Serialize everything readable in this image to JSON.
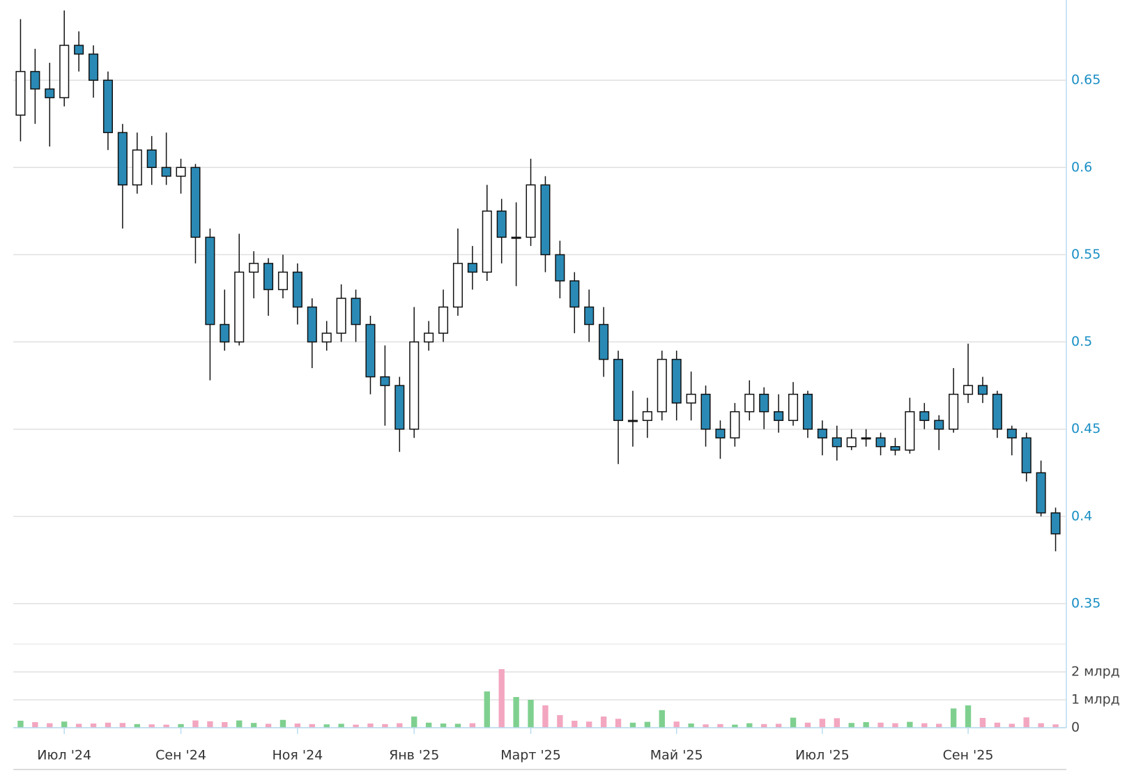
{
  "chart_data": [
    {
      "type": "candlestick",
      "categories": [
        null,
        null,
        null,
        "Июл '24",
        null,
        null,
        null,
        null,
        null,
        null,
        null,
        "Сен '24",
        null,
        null,
        null,
        null,
        null,
        null,
        null,
        "Ноя '24",
        null,
        null,
        null,
        null,
        null,
        null,
        null,
        "Янв '25",
        null,
        null,
        null,
        null,
        null,
        null,
        null,
        "Март '25",
        null,
        null,
        null,
        null,
        null,
        null,
        null,
        null,
        null,
        "Май '25",
        null,
        null,
        null,
        null,
        null,
        null,
        null,
        null,
        null,
        "Июл '25",
        null,
        null,
        null,
        null,
        null,
        null,
        null,
        null,
        null,
        "Сен '25",
        null,
        null,
        null,
        null,
        null,
        null
      ],
      "open": [
        0.63,
        0.655,
        0.645,
        0.64,
        0.67,
        0.665,
        0.65,
        0.62,
        0.59,
        0.61,
        0.6,
        0.595,
        0.6,
        0.56,
        0.51,
        0.5,
        0.54,
        0.545,
        0.53,
        0.54,
        0.52,
        0.5,
        0.505,
        0.525,
        0.51,
        0.48,
        0.475,
        0.45,
        0.5,
        0.505,
        0.52,
        0.545,
        0.54,
        0.575,
        0.56,
        0.56,
        0.59,
        0.55,
        0.535,
        0.52,
        0.51,
        0.49,
        0.455,
        0.455,
        0.46,
        0.49,
        0.465,
        0.47,
        0.45,
        0.445,
        0.46,
        0.47,
        0.46,
        0.455,
        0.47,
        0.45,
        0.445,
        0.44,
        0.445,
        0.445,
        0.44,
        0.438,
        0.46,
        0.455,
        0.45,
        0.47,
        0.475,
        0.47,
        0.45,
        0.445,
        0.425,
        0.402
      ],
      "high": [
        0.685,
        0.668,
        0.66,
        0.69,
        0.678,
        0.67,
        0.655,
        0.625,
        0.62,
        0.618,
        0.62,
        0.605,
        0.602,
        0.565,
        0.53,
        0.562,
        0.552,
        0.548,
        0.55,
        0.545,
        0.525,
        0.512,
        0.533,
        0.53,
        0.515,
        0.498,
        0.48,
        0.52,
        0.512,
        0.53,
        0.565,
        0.555,
        0.59,
        0.582,
        0.58,
        0.605,
        0.595,
        0.558,
        0.54,
        0.53,
        0.52,
        0.495,
        0.472,
        0.468,
        0.495,
        0.495,
        0.483,
        0.475,
        0.455,
        0.465,
        0.478,
        0.474,
        0.47,
        0.477,
        0.472,
        0.455,
        0.452,
        0.45,
        0.45,
        0.448,
        0.445,
        0.468,
        0.465,
        0.458,
        0.485,
        0.499,
        0.48,
        0.472,
        0.452,
        0.448,
        0.432,
        0.405
      ],
      "low": [
        0.615,
        0.625,
        0.612,
        0.635,
        0.655,
        0.64,
        0.61,
        0.565,
        0.585,
        0.59,
        0.59,
        0.585,
        0.545,
        0.478,
        0.495,
        0.498,
        0.525,
        0.515,
        0.525,
        0.51,
        0.485,
        0.495,
        0.5,
        0.5,
        0.47,
        0.452,
        0.437,
        0.445,
        0.495,
        0.5,
        0.515,
        0.53,
        0.535,
        0.545,
        0.532,
        0.555,
        0.54,
        0.525,
        0.505,
        0.5,
        0.48,
        0.43,
        0.44,
        0.445,
        0.455,
        0.455,
        0.455,
        0.44,
        0.433,
        0.44,
        0.455,
        0.45,
        0.448,
        0.452,
        0.445,
        0.435,
        0.432,
        0.438,
        0.44,
        0.435,
        0.435,
        0.436,
        0.45,
        0.438,
        0.448,
        0.465,
        0.465,
        0.445,
        0.435,
        0.42,
        0.4,
        0.38
      ],
      "close": [
        0.655,
        0.645,
        0.64,
        0.67,
        0.665,
        0.65,
        0.62,
        0.59,
        0.61,
        0.6,
        0.595,
        0.6,
        0.56,
        0.51,
        0.5,
        0.54,
        0.545,
        0.53,
        0.54,
        0.52,
        0.5,
        0.505,
        0.525,
        0.51,
        0.48,
        0.475,
        0.45,
        0.5,
        0.505,
        0.52,
        0.545,
        0.54,
        0.575,
        0.56,
        0.56,
        0.59,
        0.55,
        0.535,
        0.52,
        0.51,
        0.49,
        0.455,
        0.455,
        0.46,
        0.49,
        0.465,
        0.47,
        0.45,
        0.445,
        0.46,
        0.47,
        0.46,
        0.455,
        0.47,
        0.45,
        0.445,
        0.44,
        0.445,
        0.445,
        0.44,
        0.438,
        0.46,
        0.455,
        0.45,
        0.47,
        0.475,
        0.47,
        0.45,
        0.445,
        0.425,
        0.402,
        0.39
      ],
      "ylim": [
        0.35,
        0.69
      ],
      "yticks": [
        0.35,
        0.4,
        0.45,
        0.5,
        0.55,
        0.6,
        0.65
      ],
      "grid": true,
      "up_color": "#ffffff",
      "down_color": "#2a8ab5"
    },
    {
      "type": "bar",
      "values": [
        250000000.0,
        200000000.0,
        160000000.0,
        220000000.0,
        140000000.0,
        150000000.0,
        180000000.0,
        170000000.0,
        130000000.0,
        120000000.0,
        110000000.0,
        130000000.0,
        260000000.0,
        230000000.0,
        200000000.0,
        260000000.0,
        170000000.0,
        140000000.0,
        280000000.0,
        150000000.0,
        130000000.0,
        120000000.0,
        140000000.0,
        110000000.0,
        150000000.0,
        130000000.0,
        160000000.0,
        400000000.0,
        180000000.0,
        150000000.0,
        140000000.0,
        160000000.0,
        1300000000.0,
        2100000000.0,
        1100000000.0,
        1000000000.0,
        800000000.0,
        450000000.0,
        250000000.0,
        220000000.0,
        400000000.0,
        320000000.0,
        180000000.0,
        210000000.0,
        630000000.0,
        220000000.0,
        150000000.0,
        120000000.0,
        130000000.0,
        110000000.0,
        160000000.0,
        130000000.0,
        140000000.0,
        360000000.0,
        180000000.0,
        320000000.0,
        340000000.0,
        170000000.0,
        200000000.0,
        180000000.0,
        160000000.0,
        210000000.0,
        160000000.0,
        140000000.0,
        690000000.0,
        800000000.0,
        350000000.0,
        180000000.0,
        140000000.0,
        370000000.0,
        160000000.0,
        120000000.0
      ],
      "ylim": [
        0,
        3000000000.0
      ],
      "yticks": [
        0,
        {
          "value": 1000000000.0,
          "label": "1 млрд"
        },
        {
          "value": 2000000000.0,
          "label": "2 млрд"
        }
      ],
      "grid": true,
      "up_color": "#7fd08f",
      "down_color": "#f3a6bf"
    }
  ]
}
